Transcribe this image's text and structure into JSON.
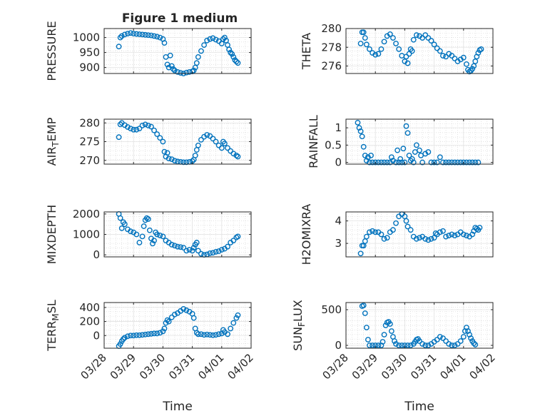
{
  "title": "Figure 1 medium",
  "xlabel": "Time",
  "x_ticks": [
    "03/28",
    "03/29",
    "03/30",
    "03/31",
    "04/01",
    "04/02"
  ],
  "marker_color": "#0072bd",
  "chart_data": [
    {
      "type": "scatter",
      "name": "PRESSURE",
      "ylabel": "PRESSURE",
      "ylim": [
        880,
        1030
      ],
      "yticks": [
        900,
        950,
        1000
      ],
      "x": [
        0.5,
        0.55,
        0.6,
        0.7,
        0.8,
        0.9,
        1.0,
        1.1,
        1.2,
        1.3,
        1.4,
        1.5,
        1.6,
        1.7,
        1.8,
        1.9,
        2.0,
        2.05,
        2.1,
        2.15,
        2.2,
        2.25,
        2.3,
        2.35,
        2.4,
        2.5,
        2.6,
        2.7,
        2.8,
        2.9,
        3.0,
        3.05,
        3.1,
        3.15,
        3.2,
        3.3,
        3.4,
        3.5,
        3.6,
        3.7,
        3.8,
        3.9,
        4.0,
        4.05,
        4.1,
        4.15,
        4.2,
        4.25,
        4.3,
        4.35,
        4.4,
        4.45,
        4.5,
        4.55
      ],
      "y": [
        970,
        1000,
        1005,
        1010,
        1013,
        1015,
        1013,
        1012,
        1011,
        1010,
        1009,
        1008,
        1007,
        1005,
        1003,
        1000,
        995,
        982,
        935,
        910,
        900,
        940,
        905,
        895,
        890,
        885,
        882,
        880,
        883,
        885,
        887,
        890,
        900,
        915,
        935,
        955,
        975,
        990,
        995,
        998,
        993,
        988,
        980,
        995,
        1000,
        990,
        975,
        960,
        950,
        945,
        935,
        925,
        920,
        915
      ]
    },
    {
      "type": "scatter",
      "name": "THETA",
      "ylabel": "THETA",
      "ylim": [
        275.2,
        280
      ],
      "yticks": [
        276,
        278,
        280
      ],
      "x": [
        0.5,
        0.55,
        0.6,
        0.65,
        0.7,
        0.8,
        0.9,
        1.0,
        1.1,
        1.2,
        1.3,
        1.4,
        1.5,
        1.6,
        1.7,
        1.8,
        1.9,
        2.0,
        2.05,
        2.1,
        2.15,
        2.2,
        2.25,
        2.3,
        2.4,
        2.5,
        2.6,
        2.7,
        2.8,
        2.9,
        3.0,
        3.1,
        3.2,
        3.3,
        3.4,
        3.5,
        3.6,
        3.7,
        3.8,
        3.9,
        4.0,
        4.1,
        4.15,
        4.2,
        4.25,
        4.3,
        4.35,
        4.4,
        4.45,
        4.5,
        4.55,
        4.6
      ],
      "y": [
        278.4,
        279.6,
        279.6,
        279.0,
        278.3,
        277.8,
        277.4,
        277.2,
        277.3,
        277.8,
        278.6,
        279.2,
        279.4,
        279.0,
        278.4,
        277.8,
        277.1,
        276.5,
        277.0,
        276.3,
        277.3,
        277.8,
        277.6,
        278.8,
        279.3,
        279.2,
        279.0,
        279.3,
        279.0,
        278.7,
        278.3,
        277.9,
        277.6,
        277.1,
        277.0,
        277.3,
        277.1,
        276.8,
        276.5,
        276.7,
        276.9,
        276.2,
        275.6,
        275.4,
        275.5,
        275.7,
        276.0,
        276.5,
        277.0,
        277.4,
        277.7,
        277.8
      ]
    },
    {
      "type": "scatter",
      "name": "AIR_TEMP",
      "ylabel": "AIR_TEMP",
      "ylim": [
        269,
        281
      ],
      "yticks": [
        270,
        275,
        280
      ],
      "x": [
        0.5,
        0.55,
        0.6,
        0.7,
        0.8,
        0.9,
        1.0,
        1.1,
        1.2,
        1.3,
        1.4,
        1.5,
        1.6,
        1.7,
        1.8,
        1.9,
        2.0,
        2.05,
        2.1,
        2.15,
        2.2,
        2.3,
        2.4,
        2.5,
        2.6,
        2.7,
        2.8,
        2.9,
        3.0,
        3.05,
        3.1,
        3.15,
        3.2,
        3.3,
        3.4,
        3.5,
        3.6,
        3.7,
        3.8,
        3.9,
        4.0,
        4.05,
        4.1,
        4.2,
        4.3,
        4.4,
        4.5,
        4.55
      ],
      "y": [
        276.2,
        279.6,
        280.0,
        279.4,
        278.9,
        278.5,
        278.2,
        278.2,
        278.5,
        279.3,
        279.6,
        279.3,
        279.0,
        278.0,
        277.0,
        276.0,
        275.0,
        272.3,
        271.0,
        272.0,
        270.5,
        270.3,
        269.9,
        269.7,
        269.6,
        269.5,
        269.5,
        269.6,
        269.8,
        270.2,
        271.3,
        272.8,
        274.0,
        275.5,
        276.3,
        276.8,
        276.5,
        275.8,
        275.0,
        274.0,
        273.3,
        275.0,
        274.5,
        273.3,
        272.5,
        271.8,
        271.3,
        271.0
      ]
    },
    {
      "type": "scatter",
      "name": "RAINFALL",
      "ylabel": "RAINFALL",
      "ylim": [
        -0.05,
        1.25
      ],
      "yticks": [
        0,
        0.5,
        1
      ],
      "x": [
        0.4,
        0.45,
        0.5,
        0.55,
        0.6,
        0.65,
        0.7,
        0.75,
        0.8,
        0.85,
        0.9,
        1.0,
        1.1,
        1.2,
        1.3,
        1.4,
        1.5,
        1.55,
        1.6,
        1.7,
        1.75,
        1.8,
        1.85,
        1.9,
        1.95,
        2.0,
        2.05,
        2.1,
        2.15,
        2.2,
        2.25,
        2.3,
        2.35,
        2.4,
        2.5,
        2.55,
        2.6,
        2.7,
        2.8,
        2.9,
        3.0,
        3.1,
        3.2,
        3.3,
        3.4,
        3.5,
        3.6,
        3.7,
        3.8,
        3.9,
        4.0,
        4.1,
        4.2,
        4.3,
        4.4,
        4.5
      ],
      "y": [
        1.15,
        1.0,
        0.9,
        0.75,
        0.45,
        0.2,
        0.05,
        0.15,
        0.0,
        0.2,
        0.0,
        0.0,
        0.0,
        0.0,
        0.0,
        0.0,
        0.0,
        0.15,
        0.05,
        0.0,
        0.35,
        0.0,
        0.1,
        0.0,
        0.4,
        0.0,
        1.05,
        0.85,
        0.2,
        0.05,
        0.1,
        0.0,
        0.3,
        0.5,
        0.35,
        0.2,
        0.0,
        0.25,
        0.3,
        0.0,
        0.0,
        0.0,
        0.15,
        0.0,
        0.0,
        0.0,
        0.0,
        0.0,
        0.0,
        0.0,
        0.0,
        0.0,
        0.0,
        0.0,
        0.0,
        0.0
      ]
    },
    {
      "type": "scatter",
      "name": "MIXDEPTH",
      "ylabel": "MIXDEPTH",
      "ylim": [
        -100,
        2100
      ],
      "yticks": [
        0,
        1000,
        2000
      ],
      "x": [
        0.5,
        0.55,
        0.6,
        0.65,
        0.7,
        0.8,
        0.9,
        1.0,
        1.1,
        1.2,
        1.3,
        1.35,
        1.4,
        1.45,
        1.5,
        1.55,
        1.6,
        1.65,
        1.7,
        1.75,
        1.8,
        1.9,
        2.0,
        2.1,
        2.2,
        2.3,
        2.4,
        2.5,
        2.6,
        2.7,
        2.8,
        2.9,
        3.0,
        3.05,
        3.1,
        3.15,
        3.2,
        3.3,
        3.4,
        3.5,
        3.6,
        3.7,
        3.8,
        3.9,
        4.0,
        4.1,
        4.2,
        4.3,
        4.4,
        4.5,
        4.55
      ],
      "y": [
        2000,
        1800,
        1300,
        1600,
        1500,
        1250,
        1150,
        1100,
        1000,
        600,
        900,
        1400,
        1700,
        1800,
        1750,
        1200,
        800,
        550,
        700,
        1100,
        1000,
        950,
        900,
        700,
        600,
        500,
        450,
        400,
        380,
        350,
        200,
        250,
        200,
        350,
        500,
        600,
        200,
        50,
        0,
        20,
        80,
        100,
        150,
        180,
        250,
        300,
        400,
        600,
        700,
        850,
        900
      ]
    },
    {
      "type": "scatter",
      "name": "H2OMIXRA",
      "ylabel": "H2OMIXRA",
      "ylim": [
        2.4,
        4.4
      ],
      "yticks": [
        3,
        4
      ],
      "x": [
        0.5,
        0.55,
        0.6,
        0.65,
        0.7,
        0.8,
        0.9,
        1.0,
        1.1,
        1.2,
        1.3,
        1.4,
        1.5,
        1.6,
        1.7,
        1.8,
        1.9,
        2.0,
        2.05,
        2.1,
        2.2,
        2.3,
        2.4,
        2.5,
        2.6,
        2.7,
        2.8,
        2.9,
        3.0,
        3.05,
        3.1,
        3.2,
        3.3,
        3.4,
        3.5,
        3.6,
        3.7,
        3.8,
        3.9,
        4.0,
        4.1,
        4.2,
        4.3,
        4.35,
        4.4,
        4.45,
        4.5,
        4.55
      ],
      "y": [
        2.55,
        2.9,
        2.9,
        3.1,
        3.3,
        3.5,
        3.55,
        3.5,
        3.5,
        3.4,
        3.2,
        3.25,
        3.5,
        3.6,
        3.9,
        4.2,
        4.3,
        4.2,
        4.0,
        3.75,
        3.6,
        3.3,
        3.2,
        3.25,
        3.3,
        3.2,
        3.15,
        3.2,
        3.25,
        3.45,
        3.4,
        3.5,
        3.55,
        3.3,
        3.35,
        3.4,
        3.35,
        3.4,
        3.5,
        3.4,
        3.35,
        3.3,
        3.4,
        3.55,
        3.7,
        3.65,
        3.6,
        3.7
      ]
    },
    {
      "type": "scatter",
      "name": "TERR_MSL",
      "ylabel": "TERR_MSL",
      "ylim": [
        -180,
        470
      ],
      "yticks": [
        0,
        200,
        400
      ],
      "x": [
        0.5,
        0.55,
        0.6,
        0.65,
        0.7,
        0.8,
        0.9,
        1.0,
        1.1,
        1.2,
        1.3,
        1.4,
        1.5,
        1.6,
        1.7,
        1.8,
        1.9,
        2.0,
        2.05,
        2.1,
        2.15,
        2.2,
        2.3,
        2.4,
        2.5,
        2.6,
        2.7,
        2.8,
        2.9,
        3.0,
        3.05,
        3.1,
        3.15,
        3.2,
        3.3,
        3.4,
        3.5,
        3.6,
        3.7,
        3.8,
        3.9,
        4.0,
        4.05,
        4.1,
        4.2,
        4.3,
        4.4,
        4.5,
        4.55
      ],
      "y": [
        -150,
        -120,
        -80,
        -50,
        -30,
        -10,
        0,
        0,
        5,
        5,
        10,
        15,
        20,
        25,
        30,
        30,
        40,
        60,
        100,
        180,
        220,
        200,
        260,
        300,
        320,
        350,
        380,
        360,
        340,
        310,
        250,
        100,
        40,
        20,
        20,
        10,
        15,
        10,
        5,
        10,
        20,
        30,
        80,
        50,
        20,
        100,
        180,
        250,
        290
      ]
    },
    {
      "type": "scatter",
      "name": "SUN_FLUX",
      "ylabel": "SUN_FLUX",
      "ylim": [
        -40,
        600
      ],
      "yticks": [
        0,
        500
      ],
      "x": [
        0.55,
        0.6,
        0.65,
        0.7,
        0.75,
        0.8,
        0.9,
        1.0,
        1.1,
        1.2,
        1.25,
        1.3,
        1.35,
        1.4,
        1.45,
        1.5,
        1.55,
        1.6,
        1.65,
        1.7,
        1.8,
        1.9,
        2.0,
        2.1,
        2.2,
        2.3,
        2.35,
        2.4,
        2.45,
        2.5,
        2.6,
        2.7,
        2.8,
        2.9,
        3.0,
        3.1,
        3.2,
        3.3,
        3.4,
        3.5,
        3.6,
        3.7,
        3.8,
        3.9,
        4.0,
        4.05,
        4.1,
        4.15,
        4.2,
        4.25,
        4.3,
        4.35,
        4.4
      ],
      "y": [
        550,
        560,
        450,
        250,
        80,
        0,
        0,
        0,
        0,
        0,
        50,
        150,
        280,
        320,
        330,
        300,
        200,
        120,
        60,
        20,
        0,
        0,
        0,
        0,
        0,
        20,
        50,
        80,
        90,
        60,
        20,
        0,
        0,
        20,
        50,
        80,
        120,
        100,
        60,
        20,
        0,
        0,
        20,
        60,
        120,
        200,
        250,
        200,
        150,
        100,
        60,
        30,
        10
      ]
    }
  ]
}
